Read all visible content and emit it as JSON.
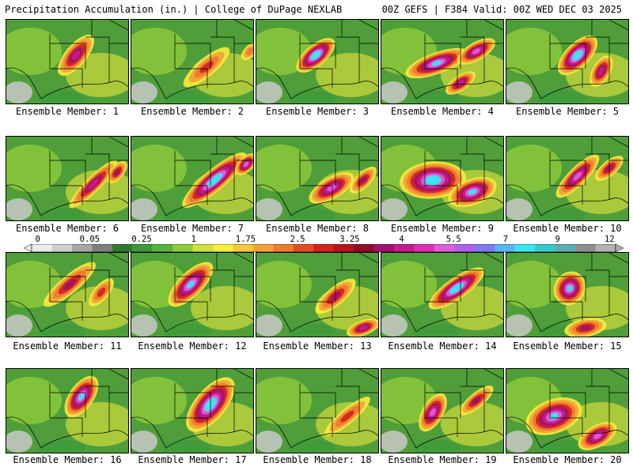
{
  "header": {
    "left": "Precipitation Accumulation (in.) | College of DuPage NEXLAB",
    "right": "00Z GEFS | F384 Valid: 00Z WED DEC 03 2025"
  },
  "colorbar": {
    "tick_labels": [
      "0",
      "0.05",
      "0.25",
      "1",
      "1.75",
      "2.5",
      "3.25",
      "4",
      "5.5",
      "7",
      "9",
      "12"
    ],
    "colors": [
      "#ececec",
      "#cfcfcf",
      "#a8a8a8",
      "#7f7f7f",
      "#2f7a2f",
      "#3c9a3c",
      "#56b43e",
      "#8fca3c",
      "#cfe23c",
      "#f6ec3c",
      "#f6c83c",
      "#f3a23a",
      "#ef7a2e",
      "#e54c26",
      "#d3211f",
      "#b5141c",
      "#8e0e27",
      "#a0126a",
      "#c41b8f",
      "#de2fb4",
      "#e35ad8",
      "#b060e8",
      "#7e7cf0",
      "#59b6f6",
      "#3ce6f0",
      "#38c9cc",
      "#5aaeb0",
      "#8e8e8e",
      "#b2b2b2"
    ]
  },
  "panels": [
    {
      "label": "Ensemble Member: 1"
    },
    {
      "label": "Ensemble Member: 2"
    },
    {
      "label": "Ensemble Member: 3"
    },
    {
      "label": "Ensemble Member: 4"
    },
    {
      "label": "Ensemble Member: 5"
    },
    {
      "label": "Ensemble Member: 6"
    },
    {
      "label": "Ensemble Member: 7"
    },
    {
      "label": "Ensemble Member: 8"
    },
    {
      "label": "Ensemble Member: 9"
    },
    {
      "label": "Ensemble Member: 10"
    },
    {
      "label": "Ensemble Member: 11"
    },
    {
      "label": "Ensemble Member: 12"
    },
    {
      "label": "Ensemble Member: 13"
    },
    {
      "label": "Ensemble Member: 14"
    },
    {
      "label": "Ensemble Member: 15"
    },
    {
      "label": "Ensemble Member: 16"
    },
    {
      "label": "Ensemble Member: 17"
    },
    {
      "label": "Ensemble Member: 18"
    },
    {
      "label": "Ensemble Member: 19"
    },
    {
      "label": "Ensemble Member: 20"
    }
  ]
}
